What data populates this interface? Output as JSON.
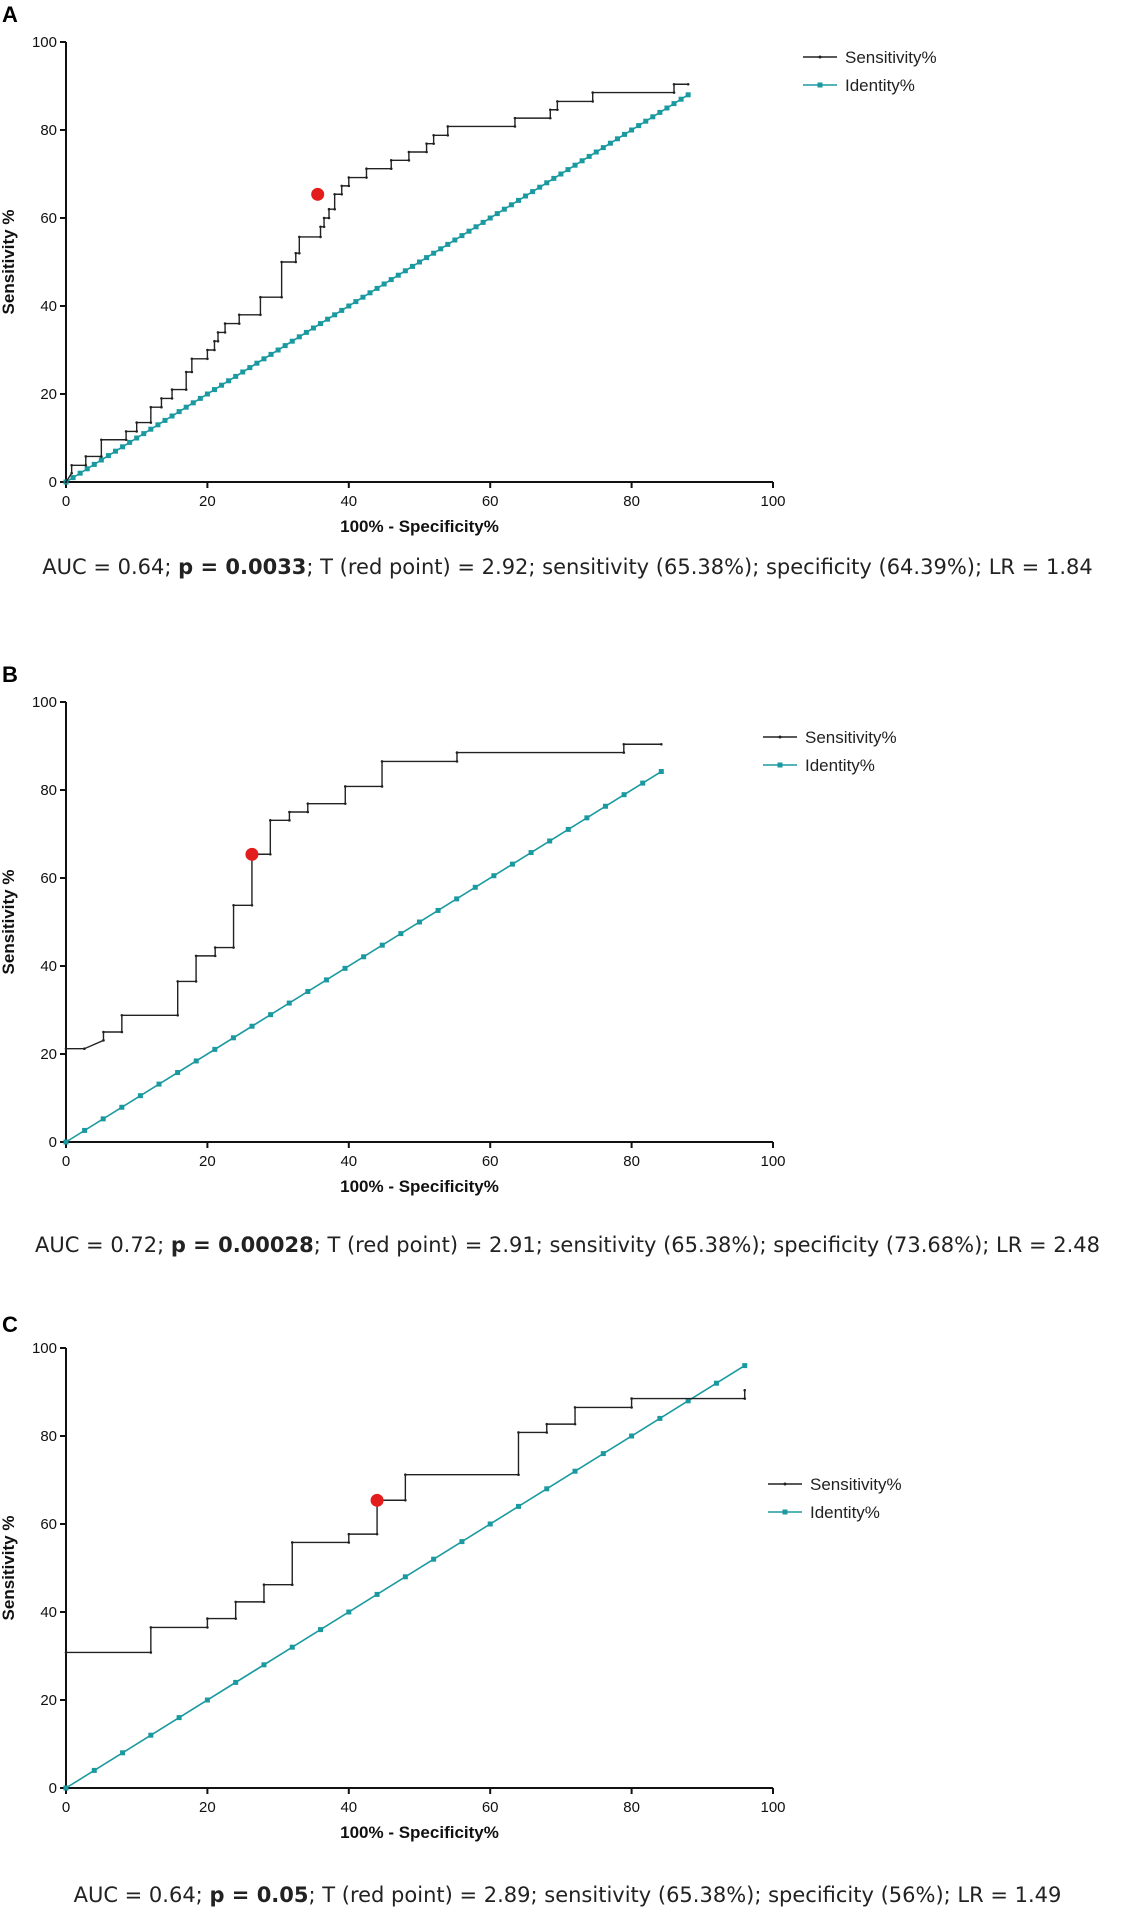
{
  "chart_data": [
    {
      "panel": "A",
      "type": "line",
      "xlabel": "100% - Specificity%",
      "ylabel": "Sensitivity %",
      "xlim": [
        0,
        100
      ],
      "ylim": [
        0,
        100
      ],
      "xticks": [
        0,
        20,
        40,
        60,
        80,
        100
      ],
      "yticks": [
        0,
        20,
        40,
        60,
        80,
        100
      ],
      "legend": [
        "Sensitivity%",
        "Identity%"
      ],
      "series": [
        {
          "name": "Sensitivity%",
          "color": "#222222",
          "points": [
            [
              0,
              0
            ],
            [
              0.8,
              2
            ],
            [
              0.8,
              3.8
            ],
            [
              2.8,
              3.8
            ],
            [
              2.8,
              5.8
            ],
            [
              5,
              5.8
            ],
            [
              5,
              9.6
            ],
            [
              8.5,
              9.6
            ],
            [
              8.5,
              11.5
            ],
            [
              10,
              11.5
            ],
            [
              10,
              13.5
            ],
            [
              12,
              13.5
            ],
            [
              12,
              17
            ],
            [
              13.5,
              17
            ],
            [
              13.5,
              19
            ],
            [
              15,
              19
            ],
            [
              15,
              21
            ],
            [
              17,
              21
            ],
            [
              17,
              25
            ],
            [
              17.8,
              25
            ],
            [
              17.8,
              28
            ],
            [
              20,
              28
            ],
            [
              20,
              30
            ],
            [
              21,
              30
            ],
            [
              21,
              32
            ],
            [
              21.5,
              32
            ],
            [
              21.5,
              34
            ],
            [
              22.5,
              34
            ],
            [
              22.5,
              36
            ],
            [
              24.5,
              36
            ],
            [
              24.5,
              38
            ],
            [
              27.5,
              38
            ],
            [
              27.5,
              42
            ],
            [
              30.5,
              42
            ],
            [
              30.5,
              50
            ],
            [
              32.5,
              50
            ],
            [
              32.5,
              52
            ],
            [
              33,
              52
            ],
            [
              33,
              55.7
            ],
            [
              36,
              55.7
            ],
            [
              36,
              58
            ],
            [
              36.5,
              58
            ],
            [
              36.5,
              60
            ],
            [
              37.2,
              60
            ],
            [
              37.2,
              62
            ],
            [
              38,
              62
            ],
            [
              38,
              65.4
            ],
            [
              39,
              65.4
            ],
            [
              39,
              67.3
            ],
            [
              40,
              67.3
            ],
            [
              40,
              69.2
            ],
            [
              42.5,
              69.2
            ],
            [
              42.5,
              71.2
            ],
            [
              46,
              71.2
            ],
            [
              46,
              73.1
            ],
            [
              48.5,
              73.1
            ],
            [
              48.5,
              75
            ],
            [
              51,
              75
            ],
            [
              51,
              76.9
            ],
            [
              52,
              76.9
            ],
            [
              52,
              78.8
            ],
            [
              54,
              78.8
            ],
            [
              54,
              80.8
            ],
            [
              63.5,
              80.8
            ],
            [
              63.5,
              82.7
            ],
            [
              68.5,
              82.7
            ],
            [
              68.5,
              84.6
            ],
            [
              69.5,
              84.6
            ],
            [
              69.5,
              86.5
            ],
            [
              74.5,
              86.5
            ],
            [
              74.5,
              88.5
            ],
            [
              86,
              88.5
            ],
            [
              86,
              90.4
            ],
            [
              88,
              90.4
            ]
          ],
          "red_point": [
            35.6,
            65.38
          ]
        },
        {
          "name": "Identity%",
          "color": "#1a9aa0",
          "points": [
            [
              0,
              0
            ],
            [
              88,
              88
            ]
          ]
        }
      ],
      "caption_plain_1": "AUC = 0.64; ",
      "caption_bold": "p = 0.0033",
      "caption_plain_2": "; T (red point) = 2.92; sensitivity (65.38%); specificity (64.39%); LR = 1.84"
    },
    {
      "panel": "B",
      "type": "line",
      "xlabel": "100% - Specificity%",
      "ylabel": "Sensitivity %",
      "xlim": [
        0,
        100
      ],
      "ylim": [
        0,
        100
      ],
      "xticks": [
        0,
        20,
        40,
        60,
        80,
        100
      ],
      "yticks": [
        0,
        20,
        40,
        60,
        80,
        100
      ],
      "legend": [
        "Sensitivity%",
        "Identity%"
      ],
      "series": [
        {
          "name": "Sensitivity%",
          "color": "#222222",
          "points": [
            [
              0,
              21.2
            ],
            [
              2.6,
              21.2
            ],
            [
              5.3,
              23.1
            ],
            [
              5.3,
              25
            ],
            [
              7.9,
              25
            ],
            [
              7.9,
              28.8
            ],
            [
              15.8,
              28.8
            ],
            [
              15.8,
              36.5
            ],
            [
              18.4,
              36.5
            ],
            [
              18.4,
              42.3
            ],
            [
              21.1,
              42.3
            ],
            [
              21.1,
              44.2
            ],
            [
              23.7,
              44.2
            ],
            [
              23.7,
              53.8
            ],
            [
              26.3,
              53.8
            ],
            [
              26.3,
              65.4
            ],
            [
              28.9,
              65.4
            ],
            [
              28.9,
              73.1
            ],
            [
              31.6,
              73.1
            ],
            [
              31.6,
              75
            ],
            [
              34.2,
              75
            ],
            [
              34.2,
              76.9
            ],
            [
              39.5,
              76.9
            ],
            [
              39.5,
              80.8
            ],
            [
              44.7,
              80.8
            ],
            [
              44.7,
              86.5
            ],
            [
              55.3,
              86.5
            ],
            [
              55.3,
              88.5
            ],
            [
              78.9,
              88.5
            ],
            [
              78.9,
              90.4
            ],
            [
              84.2,
              90.4
            ]
          ],
          "red_point": [
            26.3,
            65.38
          ]
        },
        {
          "name": "Identity%",
          "color": "#1a9aa0",
          "points": [
            [
              0,
              0
            ],
            [
              84.2,
              84.2
            ]
          ]
        }
      ],
      "caption_plain_1": "AUC = 0.72; ",
      "caption_bold": "p = 0.00028",
      "caption_plain_2": "; T (red point) = 2.91; sensitivity (65.38%); specificity (73.68%); LR = 2.48"
    },
    {
      "panel": "C",
      "type": "line",
      "xlabel": "100% - Specificity%",
      "ylabel": "Sensitivity %",
      "xlim": [
        0,
        100
      ],
      "ylim": [
        0,
        100
      ],
      "xticks": [
        0,
        20,
        40,
        60,
        80,
        100
      ],
      "yticks": [
        0,
        20,
        40,
        60,
        80,
        100
      ],
      "legend": [
        "Sensitivity%",
        "Identity%"
      ],
      "series": [
        {
          "name": "Sensitivity%",
          "color": "#222222",
          "points": [
            [
              0,
              30.8
            ],
            [
              12,
              30.8
            ],
            [
              12,
              36.5
            ],
            [
              20,
              36.5
            ],
            [
              20,
              38.5
            ],
            [
              24,
              38.5
            ],
            [
              24,
              42.3
            ],
            [
              28,
              42.3
            ],
            [
              28,
              46.2
            ],
            [
              32,
              46.2
            ],
            [
              32,
              55.8
            ],
            [
              40,
              55.8
            ],
            [
              40,
              57.7
            ],
            [
              44,
              57.7
            ],
            [
              44,
              65.4
            ],
            [
              48,
              65.4
            ],
            [
              48,
              71.2
            ],
            [
              64,
              71.2
            ],
            [
              64,
              80.8
            ],
            [
              68,
              80.8
            ],
            [
              68,
              82.7
            ],
            [
              72,
              82.7
            ],
            [
              72,
              86.5
            ],
            [
              80,
              86.5
            ],
            [
              80,
              88.5
            ],
            [
              96,
              88.5
            ],
            [
              96,
              90.4
            ]
          ],
          "red_point": [
            44,
            65.38
          ]
        },
        {
          "name": "Identity%",
          "color": "#1a9aa0",
          "points": [
            [
              0,
              0
            ],
            [
              96,
              96
            ]
          ]
        }
      ],
      "caption_plain_1": "AUC = 0.64; ",
      "caption_bold": "p = 0.05",
      "caption_plain_2": "; T (red point) = 2.89; sensitivity (65.38%); specificity (56%); LR = 1.49"
    }
  ]
}
